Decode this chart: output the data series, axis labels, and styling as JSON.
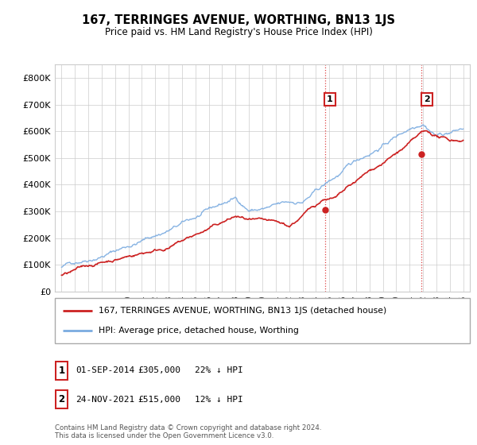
{
  "title": "167, TERRINGES AVENUE, WORTHING, BN13 1JS",
  "subtitle": "Price paid vs. HM Land Registry's House Price Index (HPI)",
  "legend_label_red": "167, TERRINGES AVENUE, WORTHING, BN13 1JS (detached house)",
  "legend_label_blue": "HPI: Average price, detached house, Worthing",
  "annotation1_date": "01-SEP-2014",
  "annotation1_price": "£305,000",
  "annotation1_hpi": "22% ↓ HPI",
  "annotation1_year": 2014.67,
  "annotation1_value": 305000,
  "annotation2_date": "24-NOV-2021",
  "annotation2_price": "£515,000",
  "annotation2_hpi": "12% ↓ HPI",
  "annotation2_year": 2021.9,
  "annotation2_value": 515000,
  "vline_color": "#dd4444",
  "footer": "Contains HM Land Registry data © Crown copyright and database right 2024.\nThis data is licensed under the Open Government Licence v3.0.",
  "ylim": [
    0,
    850000
  ],
  "yticks": [
    0,
    100000,
    200000,
    300000,
    400000,
    500000,
    600000,
    700000,
    800000
  ],
  "xlabel_years": [
    1995,
    1996,
    1997,
    1998,
    1999,
    2000,
    2001,
    2002,
    2003,
    2004,
    2005,
    2006,
    2007,
    2008,
    2009,
    2010,
    2011,
    2012,
    2013,
    2014,
    2015,
    2016,
    2017,
    2018,
    2019,
    2020,
    2021,
    2022,
    2023,
    2024,
    2025
  ],
  "red_color": "#cc2222",
  "blue_color": "#7aabe0",
  "grid_color": "#cccccc",
  "bg_color": "#ffffff",
  "xlim_left": 1994.5,
  "xlim_right": 2025.5
}
